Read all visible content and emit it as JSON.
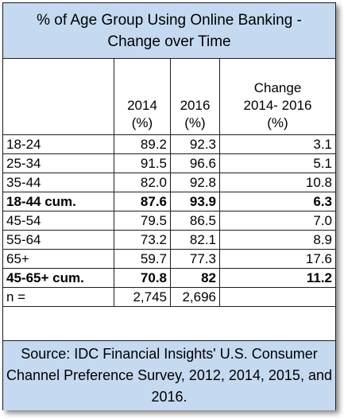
{
  "chart_data": {
    "type": "table",
    "title_line1": "% of Age Group Using Online Banking -",
    "title_line2": "Change over Time",
    "columns": {
      "c2014": [
        "2014",
        "(%)"
      ],
      "c2016": [
        "2016",
        "(%)"
      ],
      "change": [
        "Change",
        "2014- 2016",
        "(%)"
      ]
    },
    "rows": [
      {
        "label": "18-24",
        "v2014": "89.2",
        "v2016": "92.3",
        "change": "3.1",
        "bold": false
      },
      {
        "label": "25-34",
        "v2014": "91.5",
        "v2016": "96.6",
        "change": "5.1",
        "bold": false
      },
      {
        "label": "35-44",
        "v2014": "82.0",
        "v2016": "92.8",
        "change": "10.8",
        "bold": false
      },
      {
        "label": "18-44 cum.",
        "v2014": "87.6",
        "v2016": "93.9",
        "change": "6.3",
        "bold": true
      },
      {
        "label": "45-54",
        "v2014": "79.5",
        "v2016": "86.5",
        "change": "7.0",
        "bold": false
      },
      {
        "label": "55-64",
        "v2014": "73.2",
        "v2016": "82.1",
        "change": "8.9",
        "bold": false
      },
      {
        "label": "65+",
        "v2014": "59.7",
        "v2016": "77.3",
        "change": "17.6",
        "bold": false
      },
      {
        "label": "45-65+ cum.",
        "v2014": "70.8",
        "v2016": "82",
        "change": "11.2",
        "bold": true
      },
      {
        "label": "n =",
        "v2014": "2,745",
        "v2016": "2,696",
        "change": "",
        "bold": false
      }
    ],
    "source": "Source: IDC Financial Insights' U.S. Consumer Channel Preference Survey, 2012, 2014, 2015, and 2016."
  },
  "colors": {
    "header_fill": "#c5d9f1",
    "border": "#1f1f1f"
  }
}
